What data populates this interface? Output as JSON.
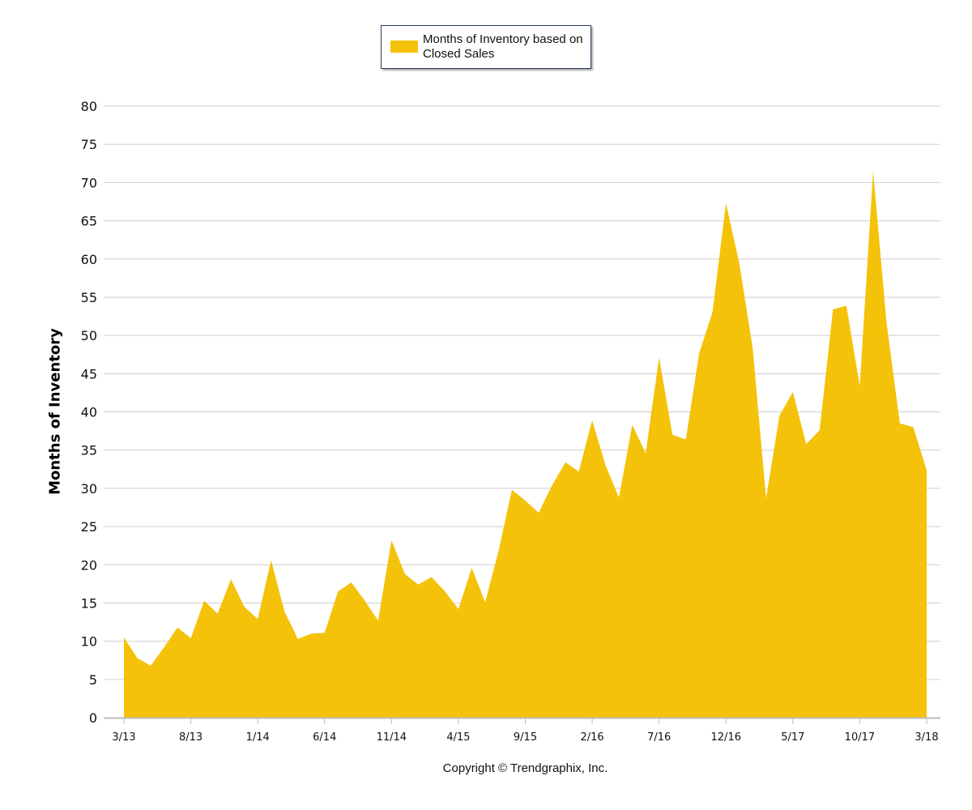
{
  "legend": {
    "label": "Months of Inventory based on Closed Sales"
  },
  "copyright": "Copyright © Trendgraphix, Inc.",
  "colors": {
    "area": "#f5c20a",
    "grid": "#cfcfcf",
    "axis": "#bdbdbd"
  },
  "chart_data": {
    "type": "area",
    "title": "",
    "xlabel": "",
    "ylabel": "Months of Inventory",
    "ylim": [
      0,
      80
    ],
    "yticks": [
      0,
      5,
      10,
      15,
      20,
      25,
      30,
      35,
      40,
      45,
      50,
      55,
      60,
      65,
      70,
      75,
      80
    ],
    "grid": true,
    "legend_position": "top-center",
    "x_tick_labels": [
      "3/13",
      "8/13",
      "1/14",
      "6/14",
      "11/14",
      "4/15",
      "9/15",
      "2/16",
      "7/16",
      "12/16",
      "5/17",
      "10/17",
      "3/18"
    ],
    "x_tick_step": 5,
    "series": [
      {
        "name": "Months of Inventory based on Closed Sales",
        "x": [
          "3/13",
          "4/13",
          "5/13",
          "6/13",
          "7/13",
          "8/13",
          "9/13",
          "10/13",
          "11/13",
          "12/13",
          "1/14",
          "2/14",
          "3/14",
          "4/14",
          "5/14",
          "6/14",
          "7/14",
          "8/14",
          "9/14",
          "10/14",
          "11/14",
          "12/14",
          "1/15",
          "2/15",
          "3/15",
          "4/15",
          "5/15",
          "6/15",
          "7/15",
          "8/15",
          "9/15",
          "10/15",
          "11/15",
          "12/15",
          "1/16",
          "2/16",
          "3/16",
          "4/16",
          "5/16",
          "6/16",
          "7/16",
          "8/16",
          "9/16",
          "10/16",
          "11/16",
          "12/16",
          "1/17",
          "2/17",
          "3/17",
          "4/17",
          "5/17",
          "6/17",
          "7/17",
          "8/17",
          "9/17",
          "10/17",
          "11/17",
          "12/17",
          "1/18",
          "2/18",
          "3/18"
        ],
        "values": [
          10.5,
          7.8,
          6.8,
          9.2,
          11.8,
          10.4,
          15.3,
          13.6,
          18.1,
          14.5,
          12.9,
          20.6,
          13.9,
          10.3,
          11,
          11.1,
          16.5,
          17.7,
          15.3,
          12.7,
          23.2,
          18.8,
          17.4,
          18.4,
          16.5,
          14.2,
          19.6,
          15.1,
          21.8,
          29.8,
          28.4,
          26.8,
          30.4,
          33.4,
          32.2,
          38.9,
          33,
          28.8,
          38.3,
          34.6,
          47.1,
          37,
          36.4,
          47.7,
          53.1,
          67.3,
          59.4,
          48.3,
          28.7,
          39.5,
          42.6,
          35.8,
          37.6,
          53.4,
          53.9,
          43.4,
          71.5,
          51.7,
          38.5,
          38,
          32.4
        ]
      }
    ]
  }
}
